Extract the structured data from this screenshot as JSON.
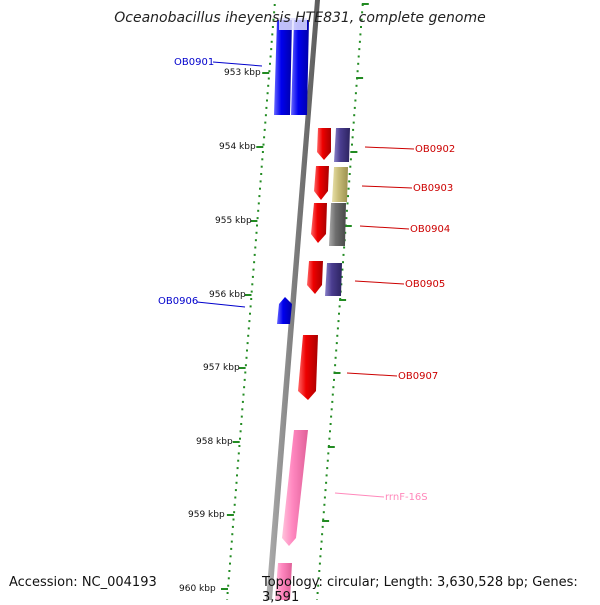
{
  "title": "Oceanobacillus iheyensis HTE831, complete genome",
  "accession": "Accession: NC_004193",
  "topology": "Topology: circular; Length: 3,630,528 bp; Genes: 3,591",
  "scale_labels": [
    "953 kbp",
    "954 kbp",
    "955 kbp",
    "956 kbp",
    "957 kbp",
    "958 kbp",
    "959 kbp",
    "960 kbp"
  ],
  "genes": [
    {
      "label": "OB0901",
      "color": "#0000cc"
    },
    {
      "label": "OB0902",
      "color": "#cc0000"
    },
    {
      "label": "OB0903",
      "color": "#cc0000"
    },
    {
      "label": "OB0904",
      "color": "#cc0000"
    },
    {
      "label": "OB0905",
      "color": "#cc0000"
    },
    {
      "label": "OB0906",
      "color": "#0000cc"
    },
    {
      "label": "OB0907",
      "color": "#cc0000"
    },
    {
      "label": "rrnF-16S",
      "color": "#ff88bb"
    }
  ],
  "colors": {
    "axis": "#808080",
    "ticks": "#228b22",
    "blue": "#0000ee",
    "red": "#ee0000",
    "purple": "#4a3d8f",
    "khaki": "#c8bd78",
    "gray": "#6e6e6e",
    "pink": "#ff88c0"
  }
}
